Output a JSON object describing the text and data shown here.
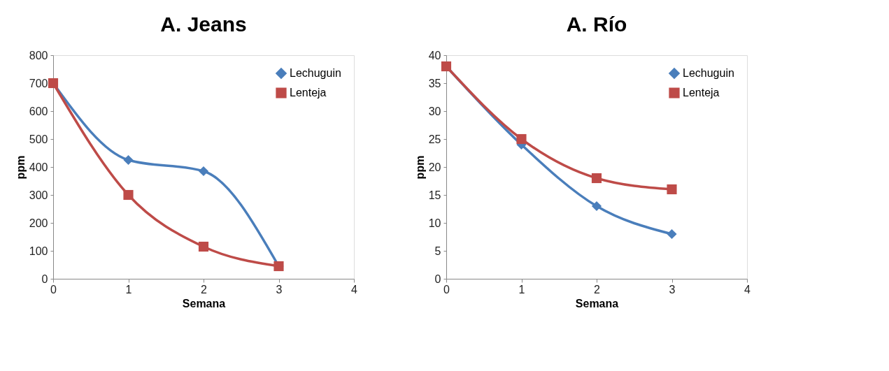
{
  "chart_data": [
    {
      "type": "line",
      "title": "A. Jeans",
      "xlabel": "Semana",
      "ylabel": "ppm",
      "x": [
        0,
        1,
        2,
        3
      ],
      "xlim": [
        0,
        4
      ],
      "xticks": [
        0,
        1,
        2,
        3,
        4
      ],
      "ylim": [
        0,
        800
      ],
      "yticks": [
        0,
        100,
        200,
        300,
        400,
        500,
        600,
        700,
        800
      ],
      "grid": false,
      "legend": "top right",
      "line_style": "solid",
      "series": [
        {
          "name": "Lechuguin",
          "color": "#4a7ebb",
          "marker": "diamond",
          "values": [
            700,
            425,
            385,
            45
          ]
        },
        {
          "name": "Lenteja",
          "color": "#be4b48",
          "marker": "square",
          "values": [
            700,
            300,
            115,
            45
          ]
        }
      ]
    },
    {
      "type": "line",
      "title": "A. Río",
      "xlabel": "Semana",
      "ylabel": "ppm",
      "x": [
        0,
        1,
        2,
        3
      ],
      "xlim": [
        0,
        4
      ],
      "xticks": [
        0,
        1,
        2,
        3,
        4
      ],
      "ylim": [
        0,
        40
      ],
      "yticks": [
        0,
        5,
        10,
        15,
        20,
        25,
        30,
        35,
        40
      ],
      "grid": false,
      "legend": "top right",
      "line_style": "solid",
      "series": [
        {
          "name": "Lechuguin",
          "color": "#4a7ebb",
          "marker": "diamond",
          "values": [
            38,
            24,
            13,
            8
          ]
        },
        {
          "name": "Lenteja",
          "color": "#be4b48",
          "marker": "square",
          "values": [
            38,
            25,
            18,
            16
          ]
        }
      ]
    }
  ]
}
